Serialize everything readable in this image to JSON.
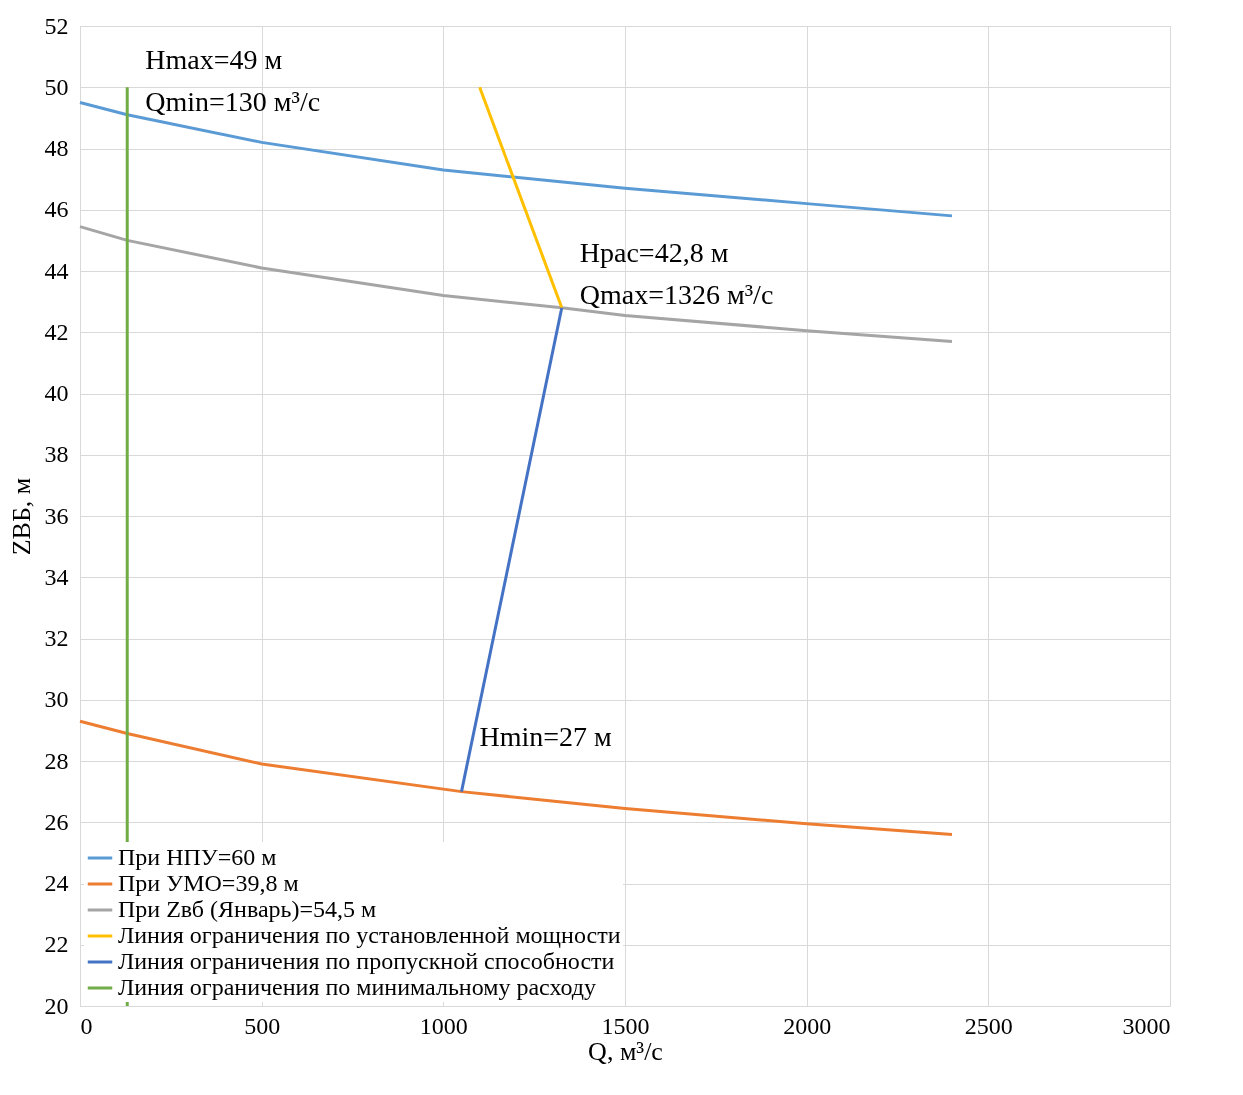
{
  "chart_data": {
    "type": "line",
    "xlabel": "Q, м³/с",
    "ylabel": "ZВБ, м",
    "xlim": [
      0,
      3000
    ],
    "xticks": [
      0,
      500,
      {
        "value": 1000,
        "label": "1000"
      },
      {
        "value": 1500,
        "label": "1500"
      },
      {
        "value": 2000,
        "label": "2000"
      },
      {
        "value": 2500,
        "label": "2500"
      },
      {
        "value": 3000,
        "label": "3000"
      }
    ],
    "ylim": [
      20,
      52
    ],
    "yticks": [
      20,
      22,
      24,
      26,
      28,
      30,
      32,
      34,
      36,
      38,
      40,
      42,
      44,
      46,
      48,
      50,
      52
    ],
    "grid": true,
    "legend": "bottom left",
    "marker": "none",
    "line_style": "solid",
    "series": [
      {
        "name": "При НПУ=60 м",
        "color": "#5b9bd5",
        "x": [
          0,
          130,
          500,
          1000,
          1500,
          2000,
          2400
        ],
        "values": [
          49.5,
          49.1,
          48.2,
          47.3,
          46.7,
          46.2,
          45.8
        ]
      },
      {
        "name": "При УМО=39,8 м",
        "color": "#ed7d31",
        "x": [
          0,
          130,
          500,
          1050,
          1500,
          2000,
          2400
        ],
        "values": [
          29.3,
          28.9,
          27.9,
          27.0,
          26.45,
          25.95,
          25.6
        ]
      },
      {
        "name": "При Zвб (Январь)=54,5 м",
        "color": "#a5a5a5",
        "x": [
          0,
          130,
          500,
          1000,
          1326,
          1500,
          2000,
          2400
        ],
        "values": [
          45.45,
          45.0,
          44.1,
          43.2,
          42.8,
          42.55,
          42.05,
          41.7
        ]
      },
      {
        "name": "Линия ограничения по установленной мощности",
        "color": "#ffc000",
        "x": [
          1100,
          1326
        ],
        "values": [
          50,
          42.8
        ]
      },
      {
        "name": "Линия ограничения по пропускной способности",
        "color": "#4472c4",
        "x": [
          1050,
          1326
        ],
        "values": [
          27,
          42.8
        ]
      },
      {
        "name": "Линия ограничения по минимальному расходу",
        "color": "#70ad47",
        "x": [
          130,
          130
        ],
        "values": [
          20,
          50
        ]
      }
    ],
    "annotations": [
      {
        "text": "Hmax=49 м\nQmin=130 м³/с",
        "x": 130,
        "y": 49.1
      },
      {
        "text": "Hрас=42,8 м\nQmax=1326 м³/с",
        "x": 1326,
        "y": 42.8
      },
      {
        "text": "Hmin=27 м",
        "x": 1050,
        "y": 27
      }
    ]
  }
}
